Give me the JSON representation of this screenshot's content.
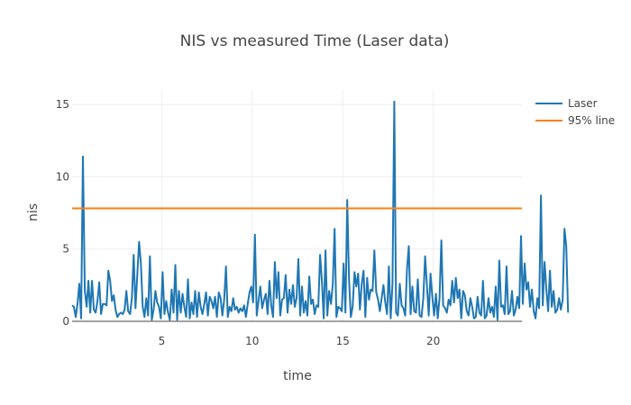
{
  "chart_data": {
    "type": "line",
    "title": "NIS vs measured Time (Laser data)",
    "xlabel": "time",
    "ylabel": "nis",
    "xlim": [
      0.05,
      24.9
    ],
    "ylim": [
      0,
      16
    ],
    "x_ticks": [
      5,
      10,
      15,
      20
    ],
    "y_ticks": [
      0,
      5,
      10,
      15
    ],
    "grid": true,
    "legend_position": "top-right",
    "series": [
      {
        "name": "Laser",
        "color": "#1f77b4",
        "x_start": 0.05,
        "x_step": 0.1,
        "values": [
          1.1,
          1.0,
          0.3,
          1.2,
          2.6,
          0.2,
          11.4,
          2.1,
          1.0,
          2.8,
          0.6,
          2.8,
          0.8,
          0.6,
          1.4,
          2.7,
          0.5,
          1.2,
          1.2,
          1.1,
          3.5,
          2.8,
          1.4,
          1.8,
          0.8,
          0.3,
          0.5,
          0.6,
          0.5,
          0.8,
          2.1,
          0.7,
          0.5,
          1.6,
          4.6,
          0.9,
          3.2,
          5.5,
          4.0,
          1.0,
          0.3,
          1.6,
          0.4,
          4.5,
          0.1,
          0.8,
          2.1,
          1.3,
          1.0,
          0.2,
          3.4,
          0.5,
          1.4,
          0.6,
          0.1,
          2.2,
          0.6,
          3.9,
          0.1,
          2.1,
          0.6,
          1.9,
          1.0,
          0.3,
          2.9,
          0.2,
          1.3,
          0.5,
          2.1,
          0.3,
          2.0,
          1.0,
          0.5,
          1.2,
          2.0,
          0.4,
          1.7,
          1.4,
          0.9,
          1.7,
          0.3,
          2.0,
          1.6,
          0.4,
          1.5,
          3.8,
          0.3,
          1.0,
          0.7,
          1.6,
          0.8,
          1.0,
          0.6,
          0.9,
          0.7,
          1.1,
          0.3,
          1.2,
          2.0,
          2.4,
          1.3,
          6.0,
          0.4,
          1.4,
          2.4,
          0.9,
          1.5,
          1.9,
          0.5,
          2.8,
          1.1,
          0.3,
          4.1,
          1.6,
          3.4,
          0.4,
          1.5,
          1.6,
          3.2,
          0.6,
          2.2,
          1.2,
          2.5,
          1.0,
          1.6,
          4.3,
          0.4,
          2.4,
          0.6,
          1.4,
          0.4,
          3.1,
          1.2,
          1.5,
          0.5,
          1.1,
          1.0,
          4.6,
          2.8,
          0.2,
          4.9,
          0.4,
          2.1,
          1.2,
          2.6,
          6.4,
          0.3,
          1.0,
          0.9,
          0.7,
          4.0,
          0.6,
          8.4,
          2.9,
          0.3,
          1.0,
          3.4,
          2.4,
          3.3,
          0.8,
          2.6,
          3.5,
          0.3,
          3.0,
          1.5,
          2.2,
          2.1,
          4.9,
          2.0,
          1.5,
          0.7,
          1.6,
          2.5,
          1.3,
          0.5,
          3.8,
          0.2,
          2.6,
          15.2,
          0.6,
          0.4,
          2.6,
          1.1,
          0.9,
          0.4,
          3.6,
          5.2,
          0.5,
          2.4,
          0.7,
          0.6,
          2.9,
          0.4,
          0.3,
          1.6,
          4.5,
          2.5,
          0.4,
          3.3,
          1.7,
          0.4,
          1.9,
          0.2,
          1.6,
          5.6,
          1.1,
          0.9,
          0.6,
          1.5,
          1.1,
          2.8,
          1.3,
          3.0,
          1.6,
          2.2,
          0.2,
          2.1,
          1.8,
          0.7,
          0.4,
          1.6,
          1.0,
          0.2,
          0.3,
          1.7,
          0.6,
          0.4,
          2.8,
          0.2,
          0.4,
          1.6,
          0.6,
          1.0,
          0.3,
          2.4,
          0.1,
          4.2,
          1.0,
          1.1,
          0.5,
          3.8,
          0.5,
          0.7,
          2.1,
          0.4,
          0.8,
          1.7,
          0.9,
          5.9,
          1.2,
          4.0,
          2.2,
          2.7,
          1.0,
          2.2,
          0.7,
          0.2,
          1.6,
          0.9,
          8.7,
          1.1,
          4.1,
          2.2,
          0.7,
          3.5,
          1.0,
          2.1,
          0.6,
          0.8,
          1.6,
          0.8,
          1.5,
          6.4,
          5.2,
          0.6
        ]
      },
      {
        "name": "95% line",
        "color": "#ff7f0e",
        "x": [
          0.05,
          24.9
        ],
        "values": [
          7.815,
          7.815
        ]
      }
    ]
  }
}
